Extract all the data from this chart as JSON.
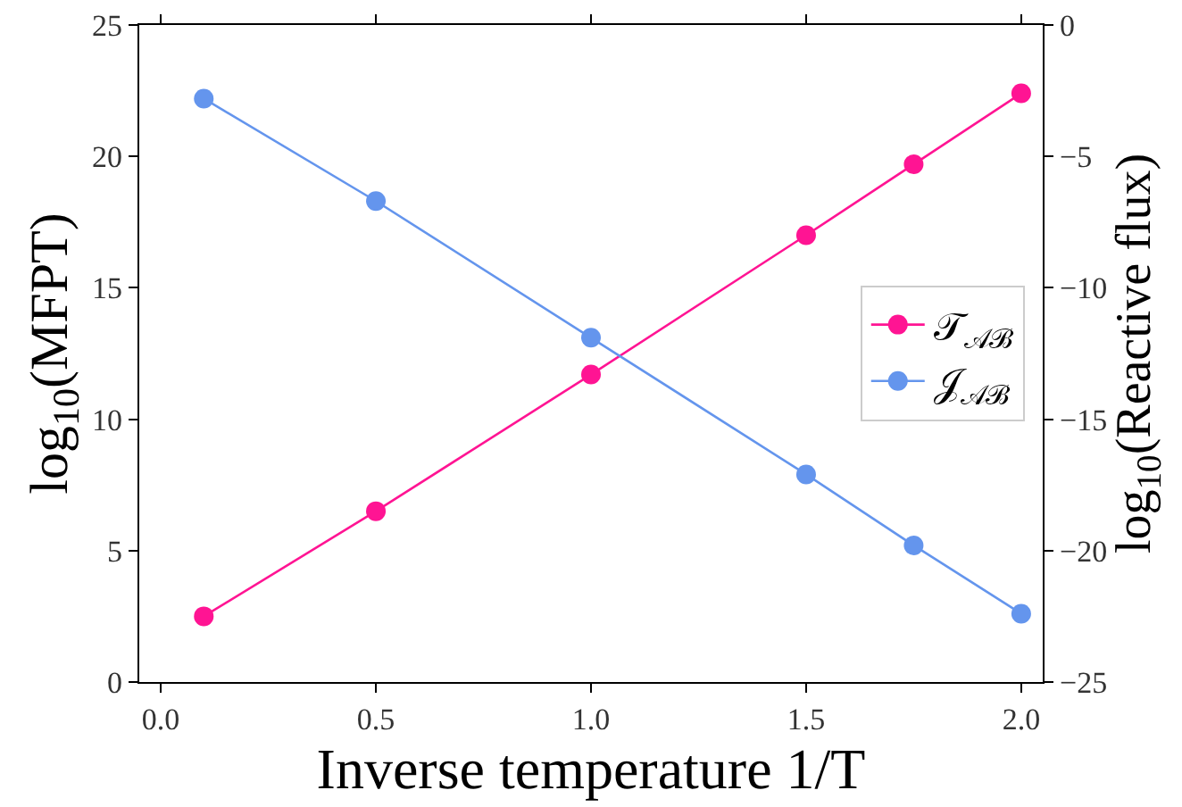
{
  "chart_data": {
    "type": "line",
    "xlabel": "Inverse temperature 1/T",
    "ylabel": "log$_{10}$(MFPT)",
    "y2label": "log$_{10}$(Reactive flux)",
    "x": [
      0.1,
      0.5,
      1.0,
      1.5,
      1.75,
      2.0
    ],
    "series": [
      {
        "name": "𝒯$_{𝒜ℬ}$",
        "color": "#ff1493",
        "values": [
          2.5,
          6.5,
          11.7,
          17.0,
          19.7,
          22.4
        ]
      },
      {
        "name": "𝒥$_{𝒜ℬ}$",
        "color": "#6495ed",
        "axis": "y2",
        "values": [
          -2.8,
          -6.7,
          -11.9,
          -17.1,
          -19.8,
          -22.4
        ]
      }
    ],
    "xlim": [
      -0.05,
      2.05
    ],
    "xticks": [
      {
        "value": 0,
        "label": "0.0"
      },
      0.5,
      {
        "value": 1,
        "label": "1.0"
      },
      1.5,
      {
        "value": 2,
        "label": "2.0"
      }
    ],
    "ylim": [
      0,
      25
    ],
    "yticks": [
      0,
      5,
      10,
      15,
      20,
      25
    ],
    "y2lim": [
      -25,
      0
    ],
    "y2ticks": [
      {
        "value": -25,
        "label": "−25"
      },
      {
        "value": -20,
        "label": "−20"
      },
      {
        "value": -15,
        "label": "−15"
      },
      {
        "value": -10,
        "label": "−10"
      },
      {
        "value": -5,
        "label": "−5"
      },
      0
    ],
    "marker": "circle",
    "line_style": "solid",
    "legend": "right"
  }
}
